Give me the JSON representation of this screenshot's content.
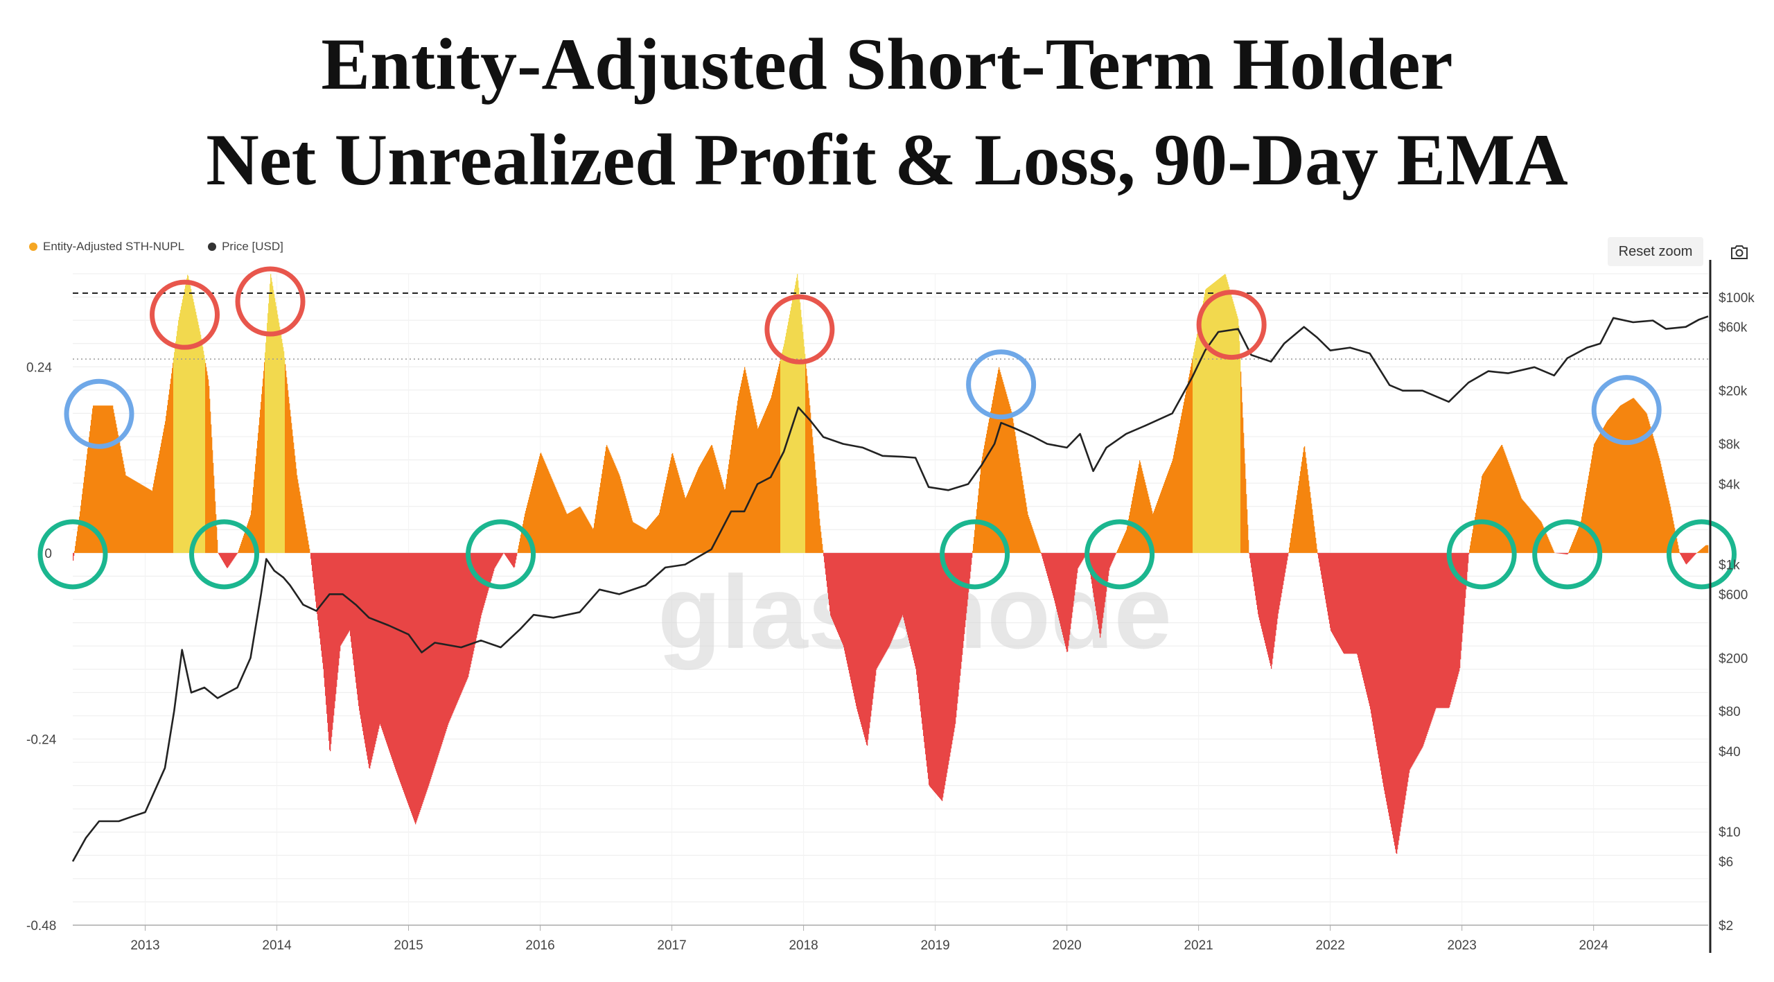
{
  "title_line1": "Entity-Adjusted Short-Term Holder",
  "title_line2": "Net Unrealized Profit & Loss, 90-Day EMA",
  "legend": [
    {
      "label": "Entity-Adjusted STH-NUPL",
      "color": "#f5a623"
    },
    {
      "label": "Price [USD]",
      "color": "#333333"
    }
  ],
  "reset_zoom_label": "Reset zoom",
  "watermark": "glassnode",
  "chart_data": {
    "type": "area",
    "title": "Entity-Adjusted Short-Term Holder Net Unrealized Profit & Loss, 90-Day EMA",
    "x_ticks": [
      "2013",
      "2014",
      "2015",
      "2016",
      "2017",
      "2018",
      "2019",
      "2020",
      "2021",
      "2022",
      "2023",
      "2024"
    ],
    "xlim": [
      2012.45,
      2024.87
    ],
    "left_axis": {
      "ticks": [
        0.24,
        0,
        -0.24,
        -0.48
      ],
      "tick_labels": [
        "0.24",
        "0",
        "-0.24",
        "-0.48"
      ],
      "ylim": [
        -0.48,
        0.36
      ]
    },
    "right_axis": {
      "scale": "log",
      "ticks": [
        100000,
        60000,
        20000,
        8000,
        4000,
        1000,
        600,
        200,
        80,
        40,
        10,
        6,
        2
      ],
      "tick_labels": [
        "$100k",
        "$60k",
        "$20k",
        "$8k",
        "$4k",
        "$1k",
        "$600",
        "$200",
        "$80",
        "$40",
        "$10",
        "$6",
        "$2"
      ],
      "ylim": [
        2,
        150000
      ]
    },
    "reference_lines": [
      {
        "value": 0.335,
        "style": "dashed"
      },
      {
        "value": 0.25,
        "style": "dotted"
      }
    ],
    "thresholds": {
      "euphoria": 0.25,
      "colors": {
        "euphoria": "#f2d94e",
        "profit": "#f5850f",
        "loss": "#e84545"
      }
    },
    "series": [
      {
        "name": "Entity-Adjusted STH-NUPL",
        "points": [
          [
            2012.45,
            -0.01
          ],
          [
            2012.5,
            0.05
          ],
          [
            2012.6,
            0.19
          ],
          [
            2012.75,
            0.19
          ],
          [
            2012.85,
            0.1
          ],
          [
            2012.95,
            0.09
          ],
          [
            2013.05,
            0.08
          ],
          [
            2013.15,
            0.17
          ],
          [
            2013.25,
            0.3
          ],
          [
            2013.32,
            0.36
          ],
          [
            2013.42,
            0.28
          ],
          [
            2013.48,
            0.22
          ],
          [
            2013.55,
            0.0
          ],
          [
            2013.62,
            -0.02
          ],
          [
            2013.7,
            0.0
          ],
          [
            2013.8,
            0.05
          ],
          [
            2013.9,
            0.24
          ],
          [
            2013.95,
            0.36
          ],
          [
            2014.05,
            0.26
          ],
          [
            2014.15,
            0.1
          ],
          [
            2014.25,
            0.0
          ],
          [
            2014.35,
            -0.15
          ],
          [
            2014.4,
            -0.26
          ],
          [
            2014.48,
            -0.12
          ],
          [
            2014.55,
            -0.1
          ],
          [
            2014.62,
            -0.2
          ],
          [
            2014.7,
            -0.28
          ],
          [
            2014.78,
            -0.22
          ],
          [
            2014.9,
            -0.28
          ],
          [
            2015.05,
            -0.35
          ],
          [
            2015.15,
            -0.3
          ],
          [
            2015.3,
            -0.22
          ],
          [
            2015.45,
            -0.16
          ],
          [
            2015.55,
            -0.08
          ],
          [
            2015.65,
            -0.02
          ],
          [
            2015.72,
            0.0
          ],
          [
            2015.8,
            -0.02
          ],
          [
            2015.88,
            0.05
          ],
          [
            2016.0,
            0.13
          ],
          [
            2016.1,
            0.09
          ],
          [
            2016.2,
            0.05
          ],
          [
            2016.3,
            0.06
          ],
          [
            2016.4,
            0.03
          ],
          [
            2016.5,
            0.14
          ],
          [
            2016.6,
            0.1
          ],
          [
            2016.7,
            0.04
          ],
          [
            2016.8,
            0.03
          ],
          [
            2016.9,
            0.05
          ],
          [
            2017.0,
            0.13
          ],
          [
            2017.1,
            0.07
          ],
          [
            2017.2,
            0.11
          ],
          [
            2017.3,
            0.14
          ],
          [
            2017.4,
            0.08
          ],
          [
            2017.5,
            0.2
          ],
          [
            2017.55,
            0.24
          ],
          [
            2017.65,
            0.16
          ],
          [
            2017.75,
            0.2
          ],
          [
            2017.85,
            0.27
          ],
          [
            2017.95,
            0.36
          ],
          [
            2018.05,
            0.18
          ],
          [
            2018.12,
            0.04
          ],
          [
            2018.2,
            -0.08
          ],
          [
            2018.3,
            -0.12
          ],
          [
            2018.4,
            -0.2
          ],
          [
            2018.48,
            -0.25
          ],
          [
            2018.55,
            -0.15
          ],
          [
            2018.65,
            -0.12
          ],
          [
            2018.75,
            -0.08
          ],
          [
            2018.85,
            -0.15
          ],
          [
            2018.95,
            -0.3
          ],
          [
            2019.05,
            -0.32
          ],
          [
            2019.15,
            -0.22
          ],
          [
            2019.25,
            -0.05
          ],
          [
            2019.35,
            0.12
          ],
          [
            2019.48,
            0.24
          ],
          [
            2019.58,
            0.18
          ],
          [
            2019.7,
            0.05
          ],
          [
            2019.8,
            0.0
          ],
          [
            2019.9,
            -0.06
          ],
          [
            2020.0,
            -0.13
          ],
          [
            2020.08,
            -0.02
          ],
          [
            2020.15,
            0.0
          ],
          [
            2020.25,
            -0.11
          ],
          [
            2020.32,
            -0.02
          ],
          [
            2020.45,
            0.03
          ],
          [
            2020.55,
            0.12
          ],
          [
            2020.65,
            0.05
          ],
          [
            2020.8,
            0.12
          ],
          [
            2020.95,
            0.25
          ],
          [
            2021.05,
            0.34
          ],
          [
            2021.2,
            0.36
          ],
          [
            2021.3,
            0.3
          ],
          [
            2021.38,
            0.0
          ],
          [
            2021.45,
            -0.08
          ],
          [
            2021.55,
            -0.15
          ],
          [
            2021.6,
            -0.08
          ],
          [
            2021.68,
            0.0
          ],
          [
            2021.8,
            0.14
          ],
          [
            2021.9,
            0.0
          ],
          [
            2022.0,
            -0.1
          ],
          [
            2022.1,
            -0.13
          ],
          [
            2022.2,
            -0.13
          ],
          [
            2022.3,
            -0.2
          ],
          [
            2022.4,
            -0.3
          ],
          [
            2022.5,
            -0.39
          ],
          [
            2022.6,
            -0.28
          ],
          [
            2022.7,
            -0.25
          ],
          [
            2022.8,
            -0.2
          ],
          [
            2022.9,
            -0.2
          ],
          [
            2022.98,
            -0.15
          ],
          [
            2023.05,
            0.0
          ],
          [
            2023.15,
            0.1
          ],
          [
            2023.3,
            0.14
          ],
          [
            2023.45,
            0.07
          ],
          [
            2023.6,
            0.04
          ],
          [
            2023.7,
            0.0
          ],
          [
            2023.8,
            -0.002
          ],
          [
            2023.9,
            0.04
          ],
          [
            2024.0,
            0.14
          ],
          [
            2024.1,
            0.17
          ],
          [
            2024.2,
            0.19
          ],
          [
            2024.3,
            0.2
          ],
          [
            2024.4,
            0.18
          ],
          [
            2024.5,
            0.12
          ],
          [
            2024.58,
            0.06
          ],
          [
            2024.65,
            0.0
          ],
          [
            2024.7,
            -0.015
          ],
          [
            2024.78,
            0.0
          ],
          [
            2024.85,
            0.01
          ]
        ]
      },
      {
        "name": "Price [USD]",
        "points": [
          [
            2012.45,
            6
          ],
          [
            2012.55,
            9
          ],
          [
            2012.65,
            12
          ],
          [
            2012.8,
            12
          ],
          [
            2012.9,
            13
          ],
          [
            2013.0,
            14
          ],
          [
            2013.15,
            30
          ],
          [
            2013.22,
            80
          ],
          [
            2013.28,
            230
          ],
          [
            2013.35,
            110
          ],
          [
            2013.45,
            120
          ],
          [
            2013.55,
            100
          ],
          [
            2013.7,
            120
          ],
          [
            2013.8,
            200
          ],
          [
            2013.88,
            600
          ],
          [
            2013.92,
            1100
          ],
          [
            2013.98,
            900
          ],
          [
            2014.05,
            800
          ],
          [
            2014.1,
            700
          ],
          [
            2014.2,
            500
          ],
          [
            2014.3,
            450
          ],
          [
            2014.4,
            600
          ],
          [
            2014.5,
            600
          ],
          [
            2014.6,
            500
          ],
          [
            2014.7,
            400
          ],
          [
            2014.85,
            350
          ],
          [
            2015.0,
            300
          ],
          [
            2015.1,
            220
          ],
          [
            2015.2,
            260
          ],
          [
            2015.4,
            240
          ],
          [
            2015.55,
            270
          ],
          [
            2015.7,
            240
          ],
          [
            2015.85,
            330
          ],
          [
            2015.95,
            420
          ],
          [
            2016.1,
            400
          ],
          [
            2016.3,
            440
          ],
          [
            2016.45,
            650
          ],
          [
            2016.6,
            600
          ],
          [
            2016.8,
            700
          ],
          [
            2016.95,
            950
          ],
          [
            2017.1,
            1000
          ],
          [
            2017.3,
            1300
          ],
          [
            2017.45,
            2500
          ],
          [
            2017.55,
            2500
          ],
          [
            2017.65,
            4000
          ],
          [
            2017.75,
            4500
          ],
          [
            2017.85,
            7000
          ],
          [
            2017.96,
            15000
          ],
          [
            2018.05,
            12000
          ],
          [
            2018.15,
            9000
          ],
          [
            2018.3,
            8000
          ],
          [
            2018.45,
            7500
          ],
          [
            2018.6,
            6500
          ],
          [
            2018.75,
            6400
          ],
          [
            2018.85,
            6300
          ],
          [
            2018.95,
            3800
          ],
          [
            2019.1,
            3600
          ],
          [
            2019.25,
            4000
          ],
          [
            2019.35,
            5500
          ],
          [
            2019.45,
            8000
          ],
          [
            2019.5,
            11500
          ],
          [
            2019.6,
            10500
          ],
          [
            2019.75,
            9000
          ],
          [
            2019.85,
            8000
          ],
          [
            2020.0,
            7500
          ],
          [
            2020.1,
            9500
          ],
          [
            2020.2,
            5000
          ],
          [
            2020.3,
            7500
          ],
          [
            2020.45,
            9500
          ],
          [
            2020.6,
            11000
          ],
          [
            2020.8,
            13500
          ],
          [
            2020.95,
            25000
          ],
          [
            2021.05,
            40000
          ],
          [
            2021.15,
            55000
          ],
          [
            2021.3,
            58000
          ],
          [
            2021.4,
            37000
          ],
          [
            2021.55,
            33000
          ],
          [
            2021.65,
            45000
          ],
          [
            2021.8,
            60000
          ],
          [
            2021.9,
            50000
          ],
          [
            2022.0,
            40000
          ],
          [
            2022.15,
            42000
          ],
          [
            2022.3,
            38000
          ],
          [
            2022.45,
            22000
          ],
          [
            2022.55,
            20000
          ],
          [
            2022.7,
            20000
          ],
          [
            2022.9,
            16500
          ],
          [
            2023.05,
            23000
          ],
          [
            2023.2,
            28000
          ],
          [
            2023.35,
            27000
          ],
          [
            2023.55,
            30000
          ],
          [
            2023.7,
            26000
          ],
          [
            2023.8,
            35000
          ],
          [
            2023.95,
            42000
          ],
          [
            2024.05,
            45000
          ],
          [
            2024.15,
            70000
          ],
          [
            2024.3,
            65000
          ],
          [
            2024.45,
            67000
          ],
          [
            2024.55,
            58000
          ],
          [
            2024.7,
            60000
          ],
          [
            2024.8,
            68000
          ],
          [
            2024.87,
            72000
          ]
        ]
      }
    ],
    "annotations": {
      "red_circles": [
        2013.3,
        2013.95,
        2017.97,
        2021.25
      ],
      "blue_circles": [
        2012.65,
        2019.5,
        2024.25
      ],
      "green_circles": [
        2012.45,
        2013.6,
        2015.7,
        2019.3,
        2020.4,
        2023.15,
        2023.8,
        2024.82
      ]
    }
  }
}
